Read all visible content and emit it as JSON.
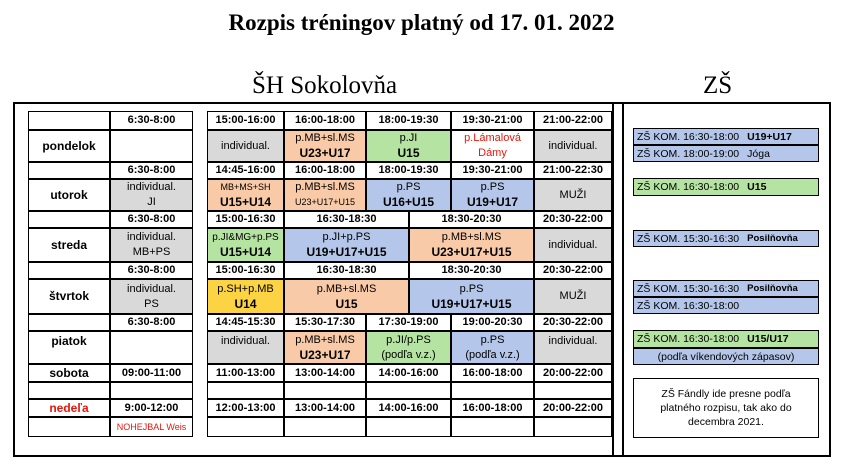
{
  "title": "Rozpis tréningov platný od 17. 01. 2022",
  "venues": {
    "sh": "ŠH Sokolovňa",
    "zs": "ZŠ"
  },
  "days": [
    "pondelok",
    "utorok",
    "streda",
    "štvrtok",
    "piatok",
    "sobota",
    "nedeľa"
  ],
  "times": {
    "pon": [
      "6:30-8:00",
      "15:00-16:00",
      "16:00-18:00",
      "18:00-19:30",
      "19:30-21:00",
      "21:00-22:00"
    ],
    "uto": [
      "6:30-8:00",
      "14:45-16:00",
      "16:00-18:00",
      "18:00-19:30",
      "19:30-21:00",
      "21:00-22:30"
    ],
    "str": [
      "6:30-8:00",
      "15:00-16:30",
      "16:30-18:30",
      "18:30-20:30",
      "20:30-22:00"
    ],
    "stv": [
      "6:30-8:00",
      "15:00-16:30",
      "16:30-18:30",
      "18:30-20:30",
      "20:30-22:00"
    ],
    "pia": [
      "6:30-8:00",
      "14:45-15:30",
      "15:30-17:30",
      "17:30-19:00",
      "19:00-20:30",
      "20:30-22:00"
    ],
    "sob": [
      "09:00-11:00",
      "11:00-13:00",
      "13:00-14:00",
      "14:00-16:00",
      "16:00-18:00",
      "20:00-22:00"
    ],
    "ned": [
      "9:00-12:00",
      "12:00-13:00",
      "13:00-14:00",
      "14:00-16:00",
      "16:00-18:00",
      "20:00-22:00"
    ]
  },
  "slots": {
    "pon": [
      {
        "l1": "individual."
      },
      {
        "l1": "p.MB+sl.MS",
        "l2": "U23+U17"
      },
      {
        "l1": "p.JI",
        "l2": "U15"
      },
      {
        "l1": "p.Lámalová",
        "l2": "Dámy"
      },
      {
        "l1": "individual."
      }
    ],
    "uto": [
      {
        "l1": "individual.",
        "l2": "JI"
      },
      {
        "l1": "MB+MS+SH",
        "l2": "U15+U14"
      },
      {
        "l1": "p.MB+sl.MS",
        "l2": "U23+U17+U15"
      },
      {
        "l1": "p.PS",
        "l2": "U16+U15"
      },
      {
        "l1": "p.PS",
        "l2": "U19+U17"
      },
      {
        "l1": "MUŽI"
      }
    ],
    "str": [
      {
        "l1": "individual.",
        "l2": "MB+PS"
      },
      {
        "l1": "p.JI&MG+p.PS",
        "l2": "U15+U14"
      },
      {
        "l1": "p.JI+p.PS",
        "l2": "U19+U17+U15"
      },
      {
        "l1": "p.MB+sl.MS",
        "l2": "U23+U17+U15"
      },
      {
        "l1": "individual."
      }
    ],
    "stv": [
      {
        "l1": "individual.",
        "l2": "PS"
      },
      {
        "l1": "p.SH+p.MB",
        "l2": "U14"
      },
      {
        "l1": "p.MB+sl.MS",
        "l2": "U15"
      },
      {
        "l1": "p.PS",
        "l2": "U19+U17+U15"
      },
      {
        "l1": "MUŽI"
      }
    ],
    "pia": [
      {
        "l1": "individual."
      },
      {
        "l1": "p.MB+sl.MS",
        "l2": "U23+U17"
      },
      {
        "l1": "p.JI/p.PS",
        "l2": "(podľa v.z.)"
      },
      {
        "l1": "p.PS",
        "l2": "(podľa v.z.)"
      },
      {
        "l1": "individual."
      }
    ],
    "ned": {
      "note": "NOHEJBAL Weis"
    }
  },
  "zs": {
    "r1": {
      "t": "ZŠ KOM. 16:30-18:00",
      "g": "U19+U17"
    },
    "r2": {
      "t": "ZŠ KOM. 18:00-19:00",
      "g": "Jóga"
    },
    "r3": {
      "t": "ZŠ KOM. 16:30-18:00",
      "g": "U15"
    },
    "r4": {
      "t": "ZŠ KOM. 15:30-16:30",
      "g": "Posilňovňa"
    },
    "r5": {
      "t": "ZŠ KOM. 15:30-16:30",
      "g": "Posilňovňa"
    },
    "r6": {
      "t": "ZŠ KOM. 16:30-18:00"
    },
    "r7": {
      "t": "ZŠ KOM. 16:30-18:00",
      "g": "U15/U17"
    },
    "r8": {
      "t": "(podľa víkendových zápasov)"
    },
    "note": [
      "ZŠ Fándly ide presne podľa",
      "platného rozpisu, tak ako do",
      "decembra 2021."
    ]
  },
  "colors": {
    "gray": "#d9d9d9",
    "orange": "#f9caa7",
    "green": "#b5e3a1",
    "blue": "#b4c6e9",
    "yellow": "#fcd342",
    "red": "#e8160c"
  }
}
